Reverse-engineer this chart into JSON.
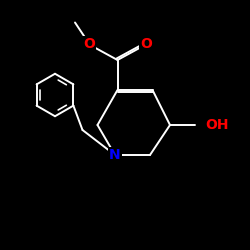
{
  "background_color": "#000000",
  "bond_color": "#ffffff",
  "atom_colors": {
    "N": "#0000ff",
    "O": "#ff0000"
  },
  "figsize": [
    2.5,
    2.5
  ],
  "dpi": 100,
  "lw": 1.4,
  "xlim": [
    0,
    10
  ],
  "ylim": [
    0,
    10
  ]
}
